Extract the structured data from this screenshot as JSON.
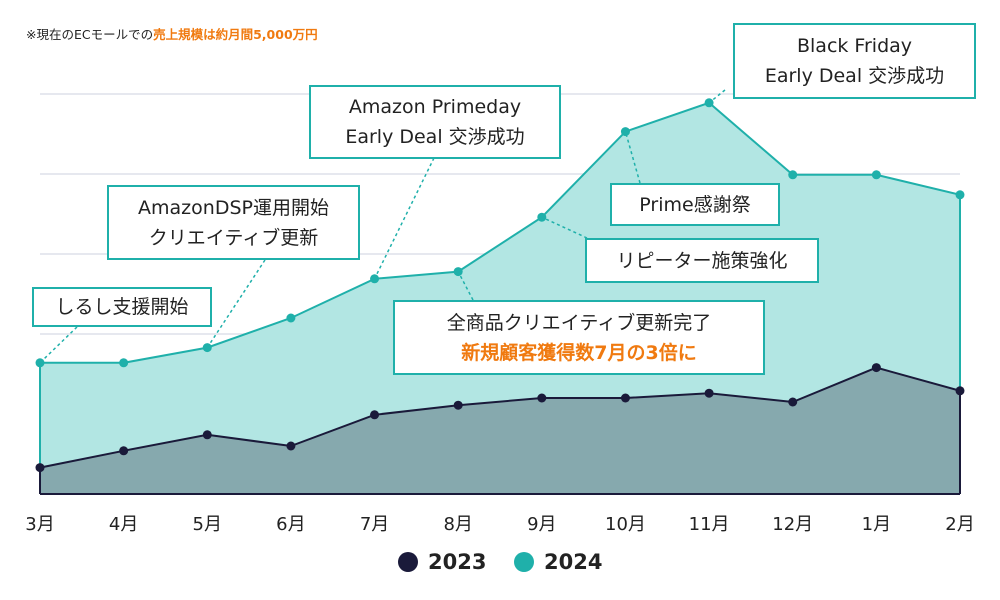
{
  "note": {
    "prefix": "※現在のECモールでの",
    "highlight": "売上規模は約月間5,000万円"
  },
  "colors": {
    "s2023": "#1a1a3a",
    "s2024": "#1fb0aa",
    "fill2023": "#86a9ae",
    "fill2024": "#b2e6e3",
    "accent": "#f07a10"
  },
  "chart_data": {
    "type": "area",
    "categories": [
      "3月",
      "4月",
      "5月",
      "6月",
      "7月",
      "8月",
      "9月",
      "10月",
      "11月",
      "12月",
      "1月",
      "2月"
    ],
    "series": [
      {
        "name": "2023",
        "values": [
          0.33,
          0.54,
          0.74,
          0.6,
          0.99,
          1.11,
          1.2,
          1.2,
          1.26,
          1.15,
          1.58,
          1.29
        ]
      },
      {
        "name": "2024",
        "values": [
          1.64,
          1.64,
          1.83,
          2.2,
          2.69,
          2.78,
          3.46,
          4.53,
          4.89,
          3.99,
          3.99,
          3.74
        ]
      }
    ],
    "ylim": [
      0,
      5
    ],
    "grid": true,
    "legend": "bottom",
    "annotations": [
      {
        "lines": [
          "しるし支援開始"
        ]
      },
      {
        "lines": [
          "AmazonDSP運用開始",
          "クリエイティブ更新"
        ]
      },
      {
        "lines": [
          "Amazon Primeday",
          "Early Deal 交渉成功"
        ]
      },
      {
        "lines": [
          "全商品クリエイティブ更新完了"
        ],
        "highlight": "新規顧客獲得数7月の3倍に"
      },
      {
        "lines": [
          "リピーター施策強化"
        ]
      },
      {
        "lines": [
          "Prime感謝祭"
        ]
      },
      {
        "lines": [
          "Black Friday",
          "Early Deal 交渉成功"
        ]
      }
    ]
  }
}
